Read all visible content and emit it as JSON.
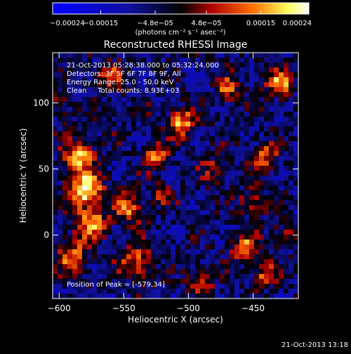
{
  "chart_data": {
    "type": "heatmap",
    "title": "Reconstructed RHESSI Image",
    "xlabel": "Heliocentric X (arcsec)",
    "ylabel": "Heliocentric Y (arcsec)",
    "xlim": [
      -605,
      -415
    ],
    "ylim": [
      -48,
      138
    ],
    "x_ticks": [
      -600,
      -550,
      -500,
      -450
    ],
    "x_tick_labels": [
      "−600",
      "−550",
      "−500",
      "−450"
    ],
    "y_ticks": [
      0,
      50,
      100
    ],
    "y_tick_labels": [
      "0",
      "50",
      "100"
    ],
    "colorbar": {
      "ticks": [
        -0.00024,
        -0.00015,
        -4.8e-05,
        4.8e-05,
        0.00015,
        0.00024
      ],
      "tick_labels": [
        "−0.00024",
        "−0.00015",
        "−4.8e−05",
        "4.8e−05",
        "0.00015",
        "0.00024"
      ],
      "units_label": "(photons cm⁻² s⁻¹ asec⁻²)",
      "range": [
        -0.00024,
        0.00024
      ],
      "colormap": [
        "#0000ff",
        "#000000",
        "#b00000",
        "#ff7000",
        "#ffff60",
        "#ffffff"
      ]
    },
    "annotations": {
      "time_range": "21-Oct-2013 05:28:38.000 to 05:32:24.000",
      "detectors": "Detectors: 3F 5F 6F 7F 8F 9F, All",
      "energy": "Energy Range: 25.0 - 50.0 keV",
      "method_counts": "Clean     Total counts: 8.93E+03",
      "peak": "Position of Peak = [-579,34]"
    },
    "peak_position": [
      -579,
      34
    ],
    "grid": false,
    "legend": "colorbar-top"
  },
  "footer": {
    "timestamp": "21-Oct-2013 13:18"
  }
}
